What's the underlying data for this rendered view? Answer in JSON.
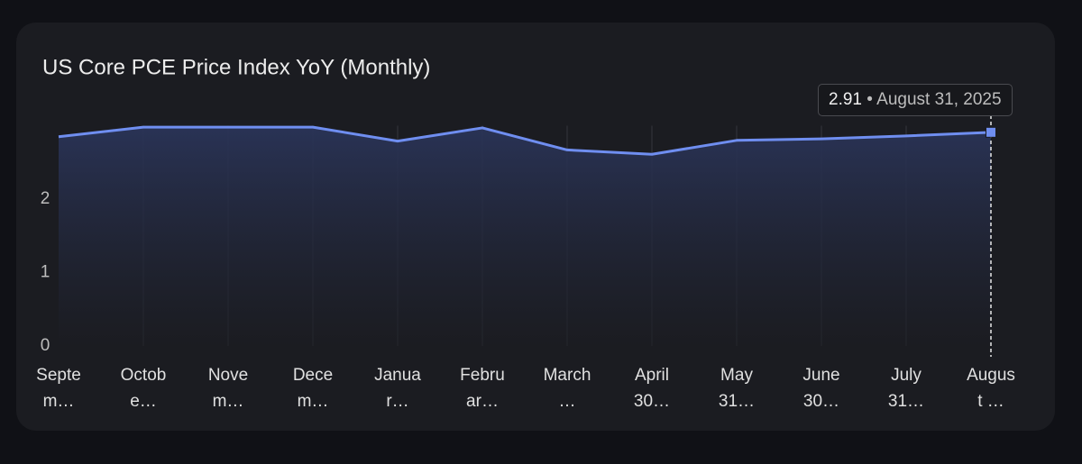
{
  "chart_data": {
    "type": "line",
    "title": "US Core PCE Price Index YoY (Monthly)",
    "categories": [
      "Septem…",
      "Octobe…",
      "Novem…",
      "Decem…",
      "Januar…",
      "Februar…",
      "March …",
      "April 30…",
      "May 31…",
      "June 30…",
      "July 31…",
      "August …"
    ],
    "series": [
      {
        "name": "US Core PCE Price Index YoY",
        "color": "#6f8ef0",
        "values": [
          2.85,
          2.98,
          2.98,
          2.98,
          2.79,
          2.97,
          2.67,
          2.61,
          2.8,
          2.82,
          2.86,
          2.91
        ]
      }
    ],
    "ylim": [
      0,
      3
    ],
    "yticks": [
      0,
      1,
      2
    ],
    "grid": true,
    "tooltip": {
      "separator": "•",
      "date": "August 31, 2025"
    }
  }
}
